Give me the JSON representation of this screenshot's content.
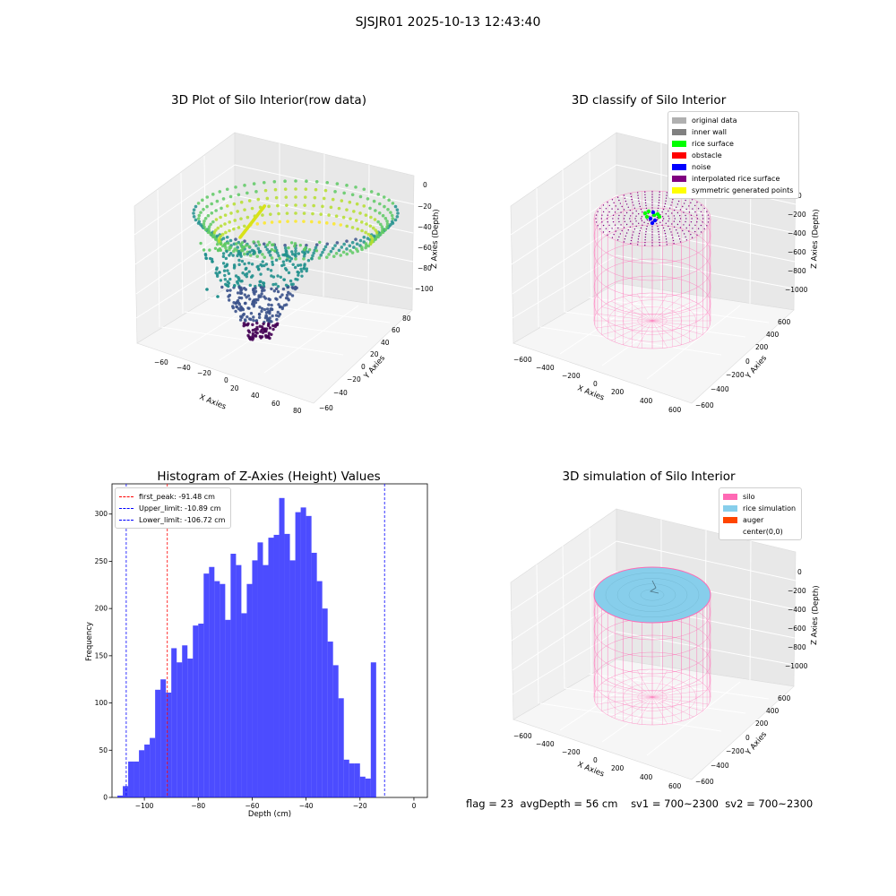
{
  "suptitle": "SJSJR01 2025-10-13 12:43:40",
  "footer": {
    "flag": "flag = 23",
    "avg_depth": "avgDepth = 56 cm",
    "sv1": "sv1 = 700~2300",
    "sv2": "sv2 = 700~2300"
  },
  "panels": {
    "tl": {
      "title": "3D Plot of Silo Interior(row data)",
      "xlabel": "X Axies",
      "ylabel": "Y Axies",
      "zlabel": "Z Axies (Depth)",
      "xticks": [
        "−60",
        "−40",
        "−20",
        "0",
        "20",
        "40",
        "60",
        "80"
      ],
      "yticks": [
        "−60",
        "−40",
        "−20",
        "0",
        "20",
        "40",
        "60",
        "80"
      ],
      "zticks": [
        "0",
        "−20",
        "−40",
        "−60",
        "−80",
        "−100"
      ]
    },
    "tr": {
      "title": "3D classify of Silo Interior",
      "xlabel": "X Axies",
      "ylabel": "Y Axies",
      "zlabel": "Z Axies (Depth)",
      "xticks": [
        "−600",
        "−400",
        "−200",
        "0",
        "200",
        "400",
        "600"
      ],
      "yticks": [
        "−600",
        "−400",
        "−200",
        "0",
        "200",
        "400",
        "600"
      ],
      "zticks": [
        "0",
        "−200",
        "−400",
        "−600",
        "−800",
        "−1000"
      ],
      "legend": [
        {
          "label": "original data",
          "color": "#b0b0b0"
        },
        {
          "label": "inner wall",
          "color": "#808080"
        },
        {
          "label": "rice surface",
          "color": "#00ff00"
        },
        {
          "label": "obstacle",
          "color": "#ff0000"
        },
        {
          "label": "noise",
          "color": "#0000ff"
        },
        {
          "label": "interpolated rice surface",
          "color": "#800080"
        },
        {
          "label": "symmetric generated points",
          "color": "#ffff00"
        }
      ]
    },
    "bl": {
      "title": "Histogram of Z-Axies (Height) Values",
      "legend": [
        {
          "label": "first_peak: -91.48 cm",
          "color": "#ff0000"
        },
        {
          "label": "Upper_limit: -10.89 cm",
          "color": "#0000ff"
        },
        {
          "label": "Lower_limit: -106.72 cm",
          "color": "#0000ff"
        }
      ]
    },
    "br": {
      "title": "3D simulation of Silo Interior",
      "xlabel": "X Axies",
      "ylabel": "Y Axies",
      "zlabel": "Z Axies (Depth)",
      "xticks": [
        "−600",
        "−400",
        "−200",
        "0",
        "200",
        "400",
        "600"
      ],
      "yticks": [
        "−600",
        "−400",
        "−200",
        "0",
        "200",
        "400",
        "600"
      ],
      "zticks": [
        "0",
        "−200",
        "−400",
        "−600",
        "−800",
        "−1000"
      ],
      "legend": [
        {
          "label": "silo",
          "color": "#ff69b4"
        },
        {
          "label": "rice simulation",
          "color": "#87ceeb"
        },
        {
          "label": "auger",
          "color": "#ff4500"
        },
        {
          "label": "center(0,0)",
          "color": "#ffffff"
        }
      ]
    }
  },
  "chart_data": {
    "type": "bar",
    "title": "Histogram of Z-Axies (Height) Values",
    "xlabel": "Depth (cm)",
    "ylabel": "Frequency",
    "xlim": [
      -112,
      5
    ],
    "ylim": [
      0,
      332
    ],
    "xticks": [
      -100,
      -80,
      -60,
      -40,
      -20,
      0
    ],
    "xtick_labels": [
      "−100",
      "−80",
      "−60",
      "−40",
      "−20",
      "0"
    ],
    "yticks": [
      0,
      50,
      100,
      150,
      200,
      250,
      300
    ],
    "bar_color": "#0000ff",
    "bar_alpha": 0.7,
    "bin_start": -110,
    "bin_width": 2,
    "values": [
      2,
      12,
      38,
      38,
      50,
      56,
      63,
      114,
      125,
      111,
      158,
      143,
      161,
      147,
      182,
      184,
      237,
      244,
      229,
      226,
      188,
      258,
      246,
      195,
      226,
      251,
      270,
      246,
      275,
      278,
      317,
      279,
      251,
      302,
      307,
      298,
      259,
      229,
      200,
      165,
      140,
      105,
      40,
      36,
      36,
      22,
      20,
      143
    ],
    "vlines": [
      {
        "label": "first_peak: -91.48 cm",
        "x": -91.48,
        "color": "#ff0000"
      },
      {
        "label": "Upper_limit: -10.89 cm",
        "x": -10.89,
        "color": "#0000ff"
      },
      {
        "label": "Lower_limit: -106.72 cm",
        "x": -106.72,
        "color": "#0000ff"
      }
    ]
  }
}
